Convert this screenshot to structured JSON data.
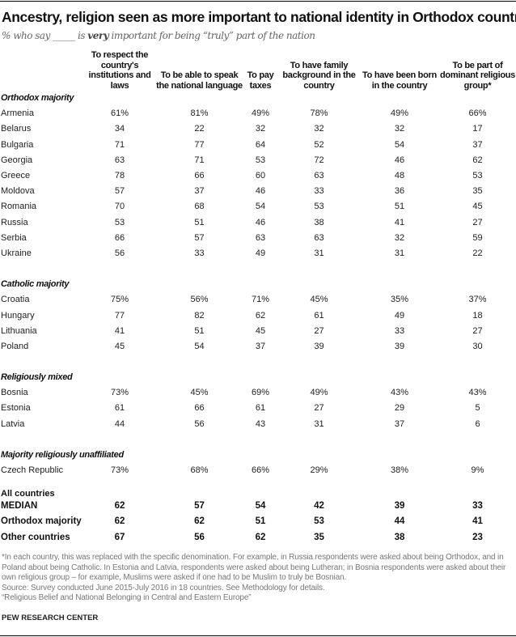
{
  "title": "Ancestry, religion seen as more important to national identity in Orthodox countries",
  "subtitle": {
    "pre": "% who say _____ is ",
    "emph": "very",
    "post": " important for being “truly” part of the nation"
  },
  "chart_data": {
    "type": "table",
    "columns": [
      "To respect the country's institutions and laws",
      "To be able to speak the national language",
      "To pay taxes",
      "To have family background in the country",
      "To have been born in the country",
      "To be part of dominant religious group*"
    ],
    "groups": [
      {
        "name": "Orthodox majority",
        "rows": [
          {
            "country": "Armenia",
            "values": [
              "61%",
              "81%",
              "49%",
              "78%",
              "49%",
              "66%"
            ]
          },
          {
            "country": "Belarus",
            "values": [
              "34",
              "22",
              "32",
              "32",
              "32",
              "17"
            ]
          },
          {
            "country": "Bulgaria",
            "values": [
              "71",
              "77",
              "64",
              "52",
              "54",
              "37"
            ]
          },
          {
            "country": "Georgia",
            "values": [
              "63",
              "71",
              "53",
              "72",
              "46",
              "62"
            ]
          },
          {
            "country": "Greece",
            "values": [
              "78",
              "66",
              "60",
              "63",
              "48",
              "53"
            ]
          },
          {
            "country": "Moldova",
            "values": [
              "57",
              "37",
              "46",
              "33",
              "36",
              "35"
            ]
          },
          {
            "country": "Romania",
            "values": [
              "70",
              "68",
              "54",
              "53",
              "51",
              "45"
            ]
          },
          {
            "country": "Russia",
            "values": [
              "53",
              "51",
              "46",
              "38",
              "41",
              "27"
            ]
          },
          {
            "country": "Serbia",
            "values": [
              "66",
              "57",
              "63",
              "63",
              "32",
              "59"
            ]
          },
          {
            "country": "Ukraine",
            "values": [
              "56",
              "33",
              "49",
              "31",
              "31",
              "22"
            ]
          }
        ]
      },
      {
        "name": "Catholic majority",
        "rows": [
          {
            "country": "Croatia",
            "values": [
              "75%",
              "56%",
              "71%",
              "45%",
              "35%",
              "37%"
            ]
          },
          {
            "country": "Hungary",
            "values": [
              "77",
              "82",
              "62",
              "61",
              "49",
              "18"
            ]
          },
          {
            "country": "Lithuania",
            "values": [
              "41",
              "51",
              "45",
              "27",
              "33",
              "27"
            ]
          },
          {
            "country": "Poland",
            "values": [
              "45",
              "54",
              "37",
              "39",
              "39",
              "30"
            ]
          }
        ]
      },
      {
        "name": "Religiously mixed",
        "rows": [
          {
            "country": "Bosnia",
            "values": [
              "73%",
              "45%",
              "69%",
              "49%",
              "43%",
              "43%"
            ]
          },
          {
            "country": "Estonia",
            "values": [
              "61",
              "66",
              "61",
              "27",
              "29",
              "5"
            ]
          },
          {
            "country": "Latvia",
            "values": [
              "44",
              "56",
              "43",
              "31",
              "37",
              "6"
            ]
          }
        ]
      },
      {
        "name": "Majority religiously unaffiliated",
        "rows": [
          {
            "country": "Czech Republic",
            "values": [
              "73%",
              "68%",
              "66%",
              "29%",
              "38%",
              "9%"
            ]
          }
        ]
      }
    ],
    "summary_heading": "All countries",
    "summary": [
      {
        "label": "MEDIAN",
        "values": [
          "62",
          "57",
          "54",
          "42",
          "39",
          "33"
        ]
      },
      {
        "label": "Orthodox majority",
        "values": [
          "62",
          "62",
          "51",
          "53",
          "44",
          "41"
        ]
      },
      {
        "label": "Other countries",
        "values": [
          "67",
          "56",
          "62",
          "35",
          "38",
          "23"
        ]
      }
    ]
  },
  "notes": {
    "footnote": "*In each country, this was replaced with the specific denomination. For example, in Russia respondents were asked about being Orthodox, and in Poland about being Catholic. In Estonia and Latvia, respondents were asked about being Lutheran; in Bosnia respondents were asked about their own religious group – for example, Muslims were asked if one had to be Muslim to truly be Bosnian.",
    "source": "Source: Survey conducted June 2015-July 2016 in 18 countries. See Methodology for details.",
    "report": "“Religious Belief and National Belonging in Central and Eastern Europe”"
  },
  "brand": "PEW RESEARCH CENTER"
}
